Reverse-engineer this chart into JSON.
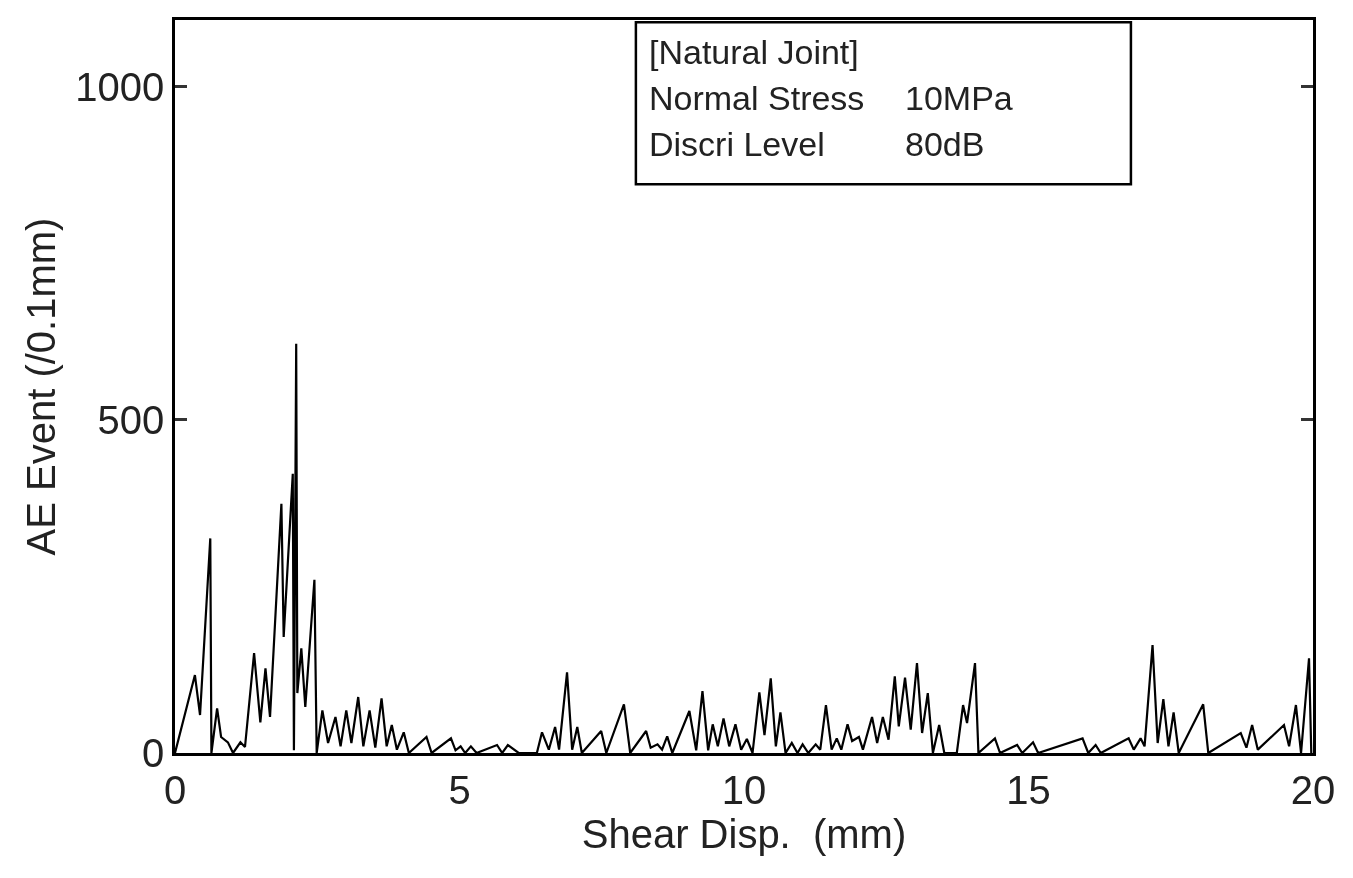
{
  "chart_data": {
    "type": "line",
    "xlabel": "Shear Disp.  (mm)",
    "ylabel": "AE Event (/0.1mm)",
    "annotations": [
      "[Natural Joint]",
      "Normal Stress",
      "10MPa",
      "Discri Level",
      "80dB"
    ],
    "xlim": [
      0,
      20
    ],
    "xticks": [
      0,
      5,
      10,
      15,
      20
    ],
    "ylim": [
      0,
      1100
    ],
    "yticks": [
      0,
      500,
      1000
    ],
    "marker": "none",
    "line_style": "solid",
    "series": [
      {
        "color": "#000000",
        "x": [
          0,
          0.35,
          0.44,
          0.62,
          0.64,
          0.74,
          0.81,
          0.93,
          1.02,
          1.15,
          1.23,
          1.39,
          1.5,
          1.59,
          1.67,
          1.87,
          1.91,
          2.07,
          2.09,
          2.13,
          2.15,
          2.22,
          2.29,
          2.45,
          2.49,
          2.59,
          2.69,
          2.82,
          2.91,
          3.01,
          3.1,
          3.22,
          3.31,
          3.42,
          3.52,
          3.63,
          3.72,
          3.81,
          3.9,
          4.02,
          4.11,
          4.42,
          4.51,
          4.85,
          4.93,
          5.02,
          5.1,
          5.2,
          5.3,
          5.66,
          5.75,
          5.85,
          6.04,
          6.36,
          6.45,
          6.57,
          6.68,
          6.75,
          6.89,
          6.98,
          7.07,
          7.15,
          7.49,
          7.58,
          7.89,
          8.0,
          8.28,
          8.36,
          8.48,
          8.56,
          8.65,
          8.74,
          9.04,
          9.16,
          9.27,
          9.37,
          9.45,
          9.54,
          9.64,
          9.74,
          9.85,
          9.95,
          10.05,
          10.15,
          10.27,
          10.36,
          10.47,
          10.56,
          10.64,
          10.73,
          10.84,
          10.94,
          11.03,
          11.13,
          11.26,
          11.34,
          11.44,
          11.54,
          11.63,
          11.71,
          11.82,
          11.9,
          12.02,
          12.09,
          12.25,
          12.34,
          12.44,
          12.54,
          12.65,
          12.72,
          12.83,
          12.93,
          13.04,
          13.13,
          13.23,
          13.32,
          13.43,
          13.52,
          13.74,
          13.85,
          13.92,
          14.06,
          14.12,
          14.41,
          14.5,
          14.8,
          14.89,
          15.08,
          15.17,
          15.95,
          16.05,
          16.18,
          16.27,
          16.76,
          16.85,
          16.97,
          17.04,
          17.18,
          17.27,
          17.37,
          17.46,
          17.55,
          17.64,
          18.07,
          18.16,
          18.73,
          18.83,
          18.93,
          19.03,
          19.49,
          19.58,
          19.7,
          19.79,
          19.93,
          19.97
        ],
        "values": [
          0,
          117,
          57,
          322,
          0,
          67,
          24,
          16,
          0,
          16,
          9,
          150,
          46,
          127,
          54,
          374,
          174,
          419,
          4,
          614,
          90,
          157,
          69,
          260,
          0,
          64,
          15,
          54,
          10,
          64,
          15,
          84,
          10,
          64,
          8,
          82,
          10,
          42,
          5,
          31,
          0,
          24,
          0,
          22,
          4,
          10,
          0,
          10,
          0,
          12,
          0,
          12,
          0,
          0,
          31,
          5,
          39,
          5,
          121,
          5,
          39,
          0,
          33,
          0,
          73,
          0,
          33,
          8,
          13,
          5,
          25,
          0,
          63,
          4,
          93,
          4,
          43,
          10,
          52,
          10,
          43,
          5,
          21,
          0,
          91,
          27,
          112,
          10,
          61,
          0,
          15,
          0,
          13,
          0,
          13,
          5,
          72,
          5,
          22,
          5,
          43,
          18,
          24,
          5,
          54,
          15,
          54,
          20,
          115,
          40,
          113,
          35,
          135,
          30,
          90,
          0,
          42,
          0,
          0,
          72,
          45,
          135,
          0,
          22,
          0,
          12,
          0,
          16,
          0,
          22,
          0,
          12,
          0,
          22,
          5,
          22,
          10,
          162,
          15,
          81,
          10,
          61,
          0,
          73,
          0,
          30,
          8,
          42,
          5,
          42,
          10,
          72,
          0,
          142,
          0
        ]
      }
    ]
  }
}
